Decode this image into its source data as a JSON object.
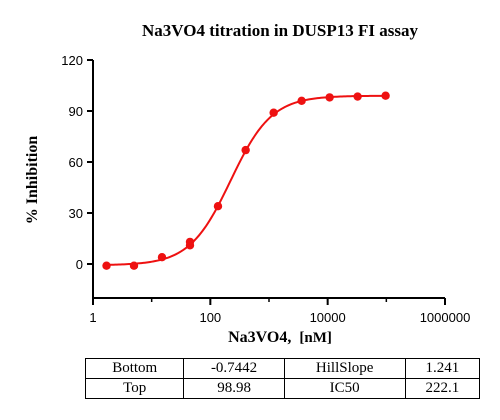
{
  "chart_data": {
    "type": "scatter",
    "title": "Na3VO4 titration in DUSP13 FI assay",
    "xlabel_main": "Na3VO4,",
    "xlabel_unit": "[nM]",
    "ylabel": "% Inhibition",
    "x_scale": "log",
    "xlim": [
      1,
      1000000
    ],
    "ylim": [
      -20,
      120
    ],
    "x_ticks": [
      1,
      100,
      10000,
      1000000
    ],
    "x_tick_labels": [
      "1",
      "100",
      "10000",
      "1000000"
    ],
    "y_ticks": [
      0,
      30,
      60,
      90,
      120
    ],
    "y_tick_labels": [
      "0",
      "30",
      "60",
      "90",
      "120"
    ],
    "grid": false,
    "color": "#ee1111",
    "series": [
      {
        "x": [
          1.7,
          5,
          15,
          45,
          45,
          135,
          400,
          1200,
          3600,
          10800,
          32400,
          97200
        ],
        "y": [
          -1,
          -1,
          4,
          11,
          13,
          34,
          67,
          89,
          96,
          98,
          98.5,
          99
        ],
        "error_bars_at_index": [
          3
        ]
      }
    ],
    "fit_curve": {
      "model": "4PL",
      "Bottom": -0.7442,
      "Top": 98.98,
      "HillSlope": 1.241,
      "IC50": 222.1
    }
  },
  "params_table": {
    "rows": [
      [
        "Bottom",
        "-0.7442",
        "HillSlope",
        "1.241"
      ],
      [
        "Top",
        "98.98",
        "IC50",
        "222.1"
      ]
    ]
  }
}
